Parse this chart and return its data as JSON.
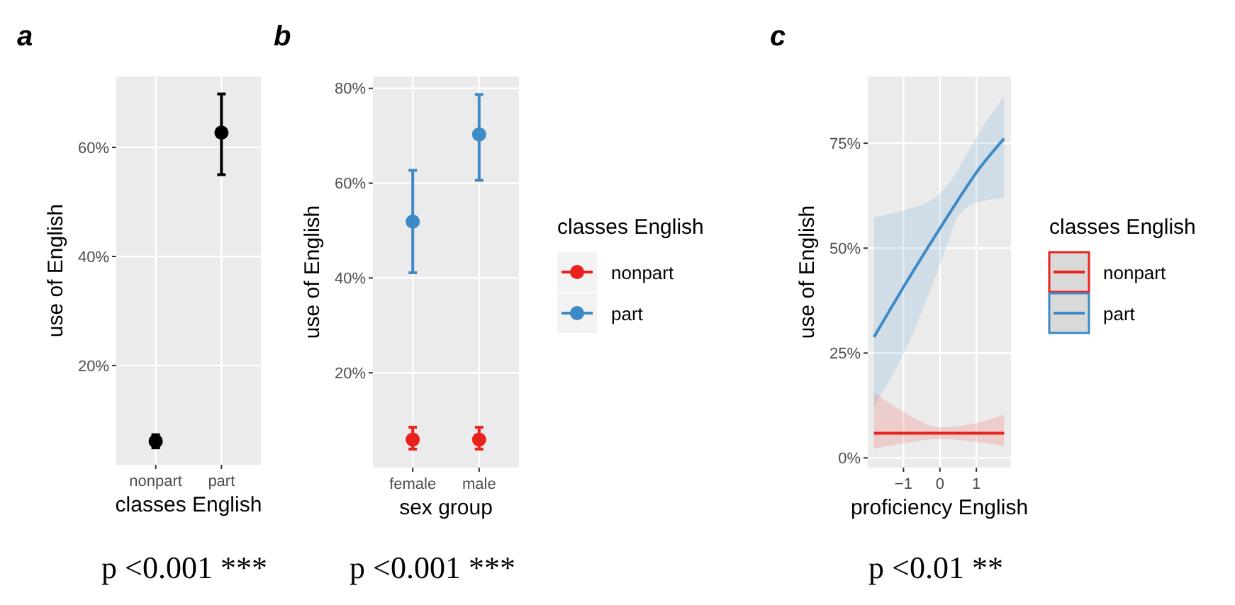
{
  "chart_data": [
    {
      "type": "scatter",
      "title": "a",
      "categories": [
        "nonpart",
        "part"
      ],
      "values": [
        6.1,
        62.7
      ],
      "errors": [
        [
          4.9,
          7.3
        ],
        [
          55,
          69.8
        ]
      ],
      "color": "#000000",
      "marker": "circle",
      "xlabel": "classes English",
      "ylabel": "use of English",
      "ylim": [
        1.8,
        73
      ],
      "yticks": [
        {
          "value": 20,
          "label": "20%"
        },
        {
          "value": 40,
          "label": "40%"
        },
        {
          "value": 60,
          "label": "60%"
        }
      ],
      "grid": true,
      "annotations": [
        "p <0.001 ***"
      ]
    },
    {
      "type": "scatter",
      "title": "b",
      "categories": [
        "female",
        "male"
      ],
      "series": [
        {
          "name": "nonpart",
          "color": "#e8231d",
          "values": [
            5.9,
            5.9
          ],
          "errors": [
            [
              3.9,
              8.5
            ],
            [
              3.9,
              8.5
            ]
          ]
        },
        {
          "name": "part",
          "color": "#3d8ac6",
          "values": [
            51.9,
            70.3
          ],
          "errors": [
            [
              41.1,
              62.7
            ],
            [
              60.6,
              78.7
            ]
          ]
        }
      ],
      "marker": "circle",
      "xlabel": "sex group",
      "ylabel": "use of English",
      "ylim": [
        0,
        82.5
      ],
      "yticks": [
        {
          "value": 20,
          "label": "20%"
        },
        {
          "value": 40,
          "label": "40%"
        },
        {
          "value": 60,
          "label": "60%"
        },
        {
          "value": 80,
          "label": "80%"
        }
      ],
      "grid": true,
      "legend": "right",
      "legend_title": "classes English",
      "annotations": [
        "p <0.001 ***"
      ]
    },
    {
      "type": "line",
      "title": "c",
      "series": [
        {
          "name": "nonpart",
          "color": "#e8231d",
          "x": [
            -1.81,
            -1,
            0,
            1,
            1.76
          ],
          "values": [
            5.9,
            5.9,
            5.9,
            5.9,
            5.9
          ],
          "lower": [
            2.2,
            3.5,
            4.5,
            3.8,
            2.8
          ],
          "upper": [
            15.7,
            11,
            7.3,
            8.3,
            10.3
          ]
        },
        {
          "name": "part",
          "color": "#3d8ac6",
          "x": [
            -1.81,
            -1,
            0,
            0.5,
            1,
            1.76
          ],
          "values": [
            28.8,
            40.7,
            54.7,
            61.5,
            68,
            76.1
          ],
          "lower": [
            12.4,
            24.8,
            46,
            57.5,
            60.8,
            62
          ],
          "upper": [
            57.4,
            59,
            63,
            68.7,
            76.5,
            86.1
          ]
        }
      ],
      "xlabel": "proficiency English",
      "ylabel": "use of English",
      "xlim": [
        -1.98,
        1.95
      ],
      "xticks": [
        {
          "value": -1,
          "label": "−1"
        },
        0,
        1
      ],
      "ylim": [
        -2.3,
        90.9
      ],
      "yticks": [
        {
          "value": 0,
          "label": "0%"
        },
        {
          "value": 25,
          "label": "25%"
        },
        {
          "value": 50,
          "label": "50%"
        },
        {
          "value": 75,
          "label": "75%"
        }
      ],
      "grid": true,
      "legend": "right",
      "legend_title": "classes English",
      "annotations": [
        "p <0.01 **"
      ]
    }
  ]
}
